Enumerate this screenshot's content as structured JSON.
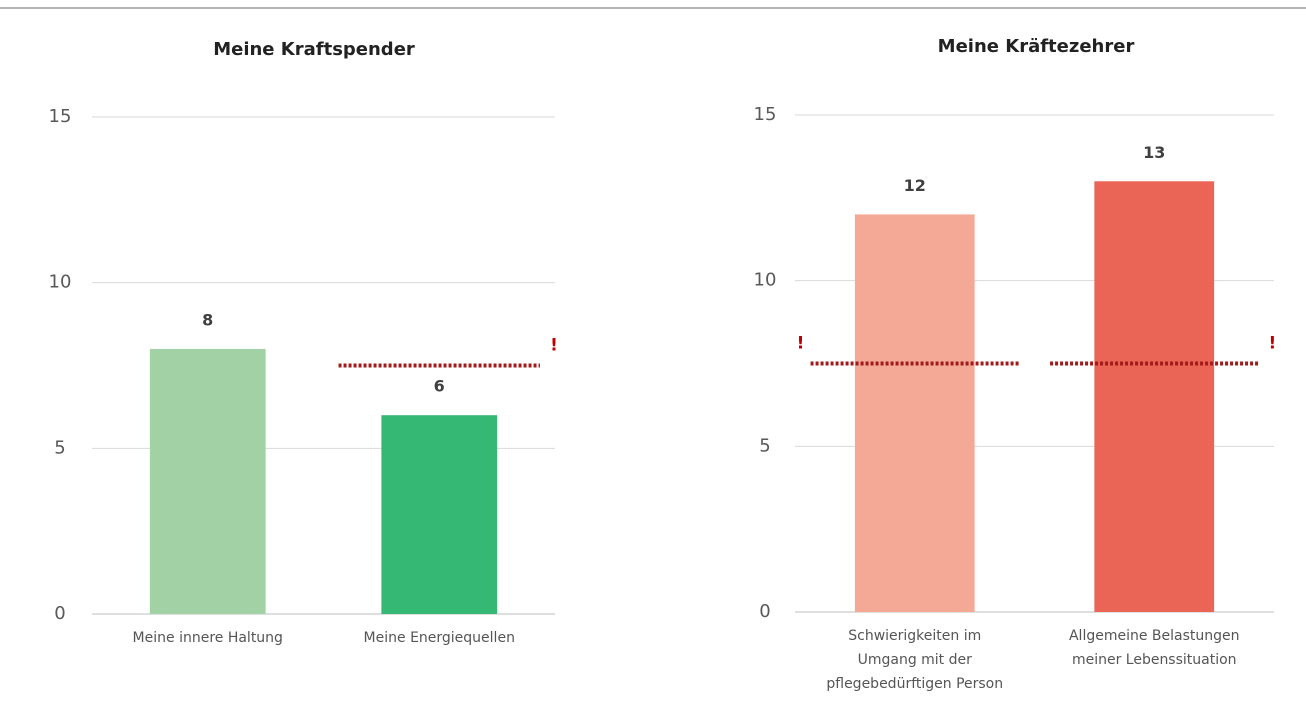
{
  "chart_data": [
    {
      "type": "bar",
      "title": "Meine Kraftspender",
      "categories": [
        "Meine innere Haltung",
        "Meine Energiequellen"
      ],
      "values": [
        8,
        6
      ],
      "colors": [
        "#a2d1a6",
        "#35b874"
      ],
      "ylim": [
        0,
        15
      ],
      "yticks": [
        0,
        5,
        10,
        15
      ],
      "grid": true,
      "thresholds": [
        null,
        7.5
      ],
      "threshold_labels": [
        null,
        "!"
      ],
      "threshold_color": "#a31a1a"
    },
    {
      "type": "bar",
      "title": "Meine Kräftezehrer",
      "categories": [
        "Schwierigkeiten im Umgang mit der pflegebedürftigen Person",
        "Allgemeine Belastungen meiner Lebenssituation"
      ],
      "values": [
        12,
        13
      ],
      "colors": [
        "#f4a996",
        "#eb6557"
      ],
      "ylim": [
        0,
        15
      ],
      "yticks": [
        0,
        5,
        10,
        15
      ],
      "grid": true,
      "thresholds": [
        7.5,
        7.5
      ],
      "threshold_labels": [
        "!",
        "!"
      ],
      "threshold_color": "#a31a1a"
    }
  ]
}
